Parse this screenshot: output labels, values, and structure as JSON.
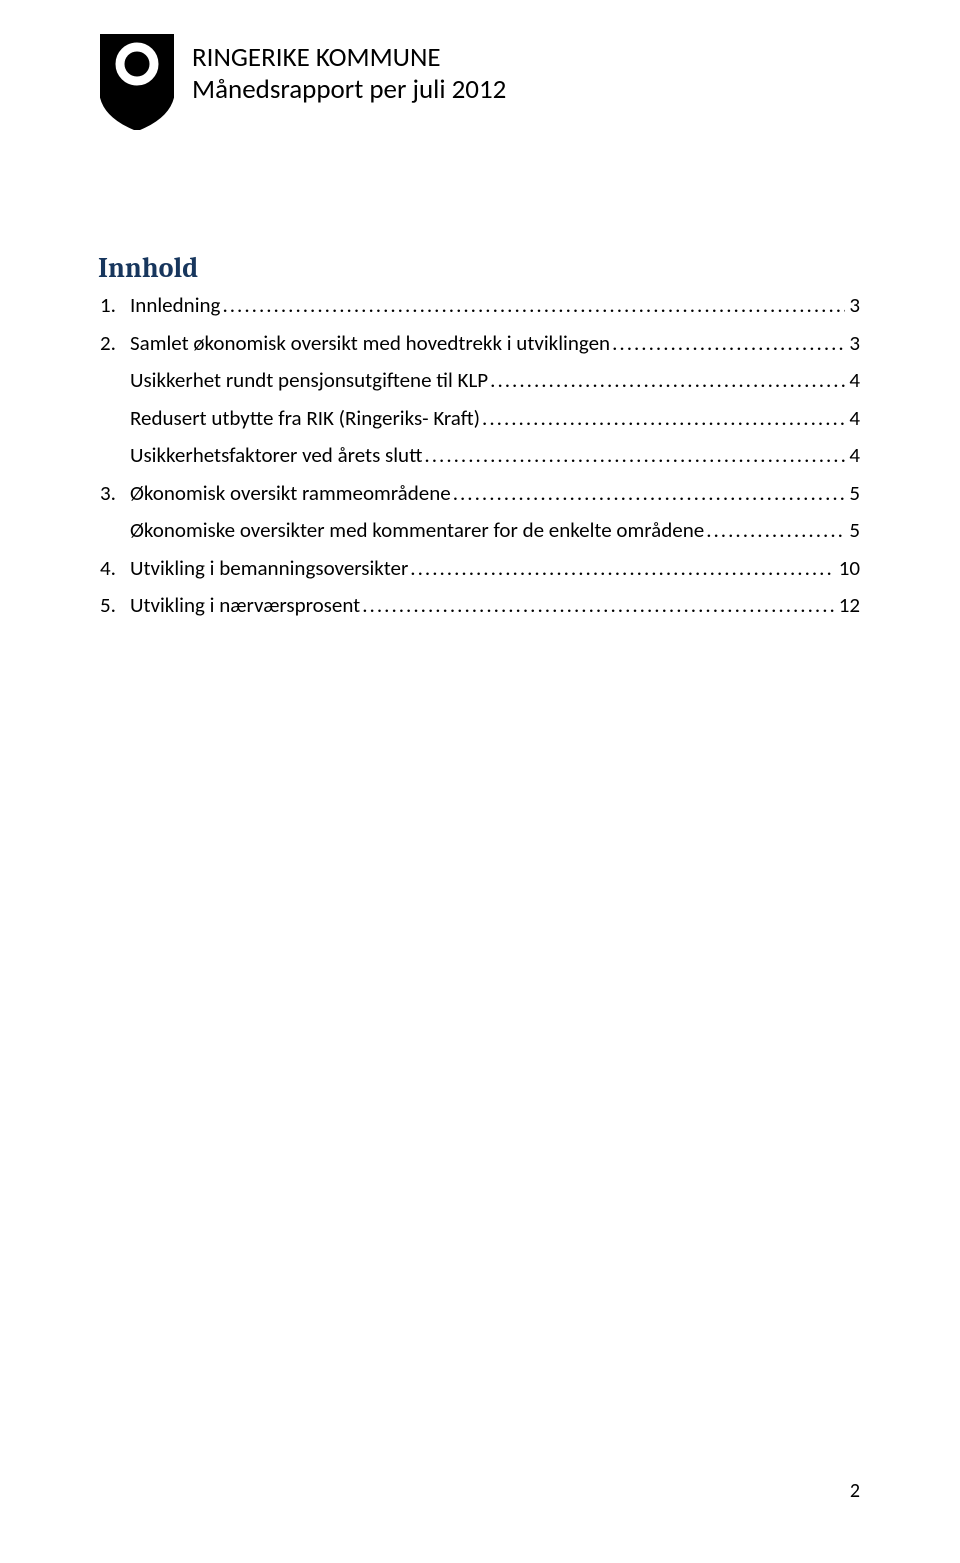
{
  "colors": {
    "heading_color": "#17365d",
    "text_color": "#000000",
    "background": "#ffffff",
    "shield_stroke": "#000000",
    "shield_fill_opaque": "#000000"
  },
  "typography": {
    "body_font": "Calibri",
    "heading_font": "Cambria",
    "header_fontsize": 27,
    "toc_heading_fontsize": 28,
    "toc_entry_fontsize": 21
  },
  "header": {
    "org_name": "RINGERIKE KOMMUNE",
    "report_title": "Månedsrapport per juli 2012"
  },
  "toc": {
    "heading": "Innhold",
    "entries": [
      {
        "num": "1.",
        "label": "Innledning",
        "page": "3",
        "indent": false,
        "numspacer": true
      },
      {
        "num": "2.",
        "label": "Samlet økonomisk oversikt med hovedtrekk i utviklingen",
        "page": "3",
        "indent": false,
        "numspacer": true
      },
      {
        "num": "",
        "label": "Usikkerhet rundt pensjonsutgiftene til KLP",
        "page": "4",
        "indent": true,
        "numspacer": false
      },
      {
        "num": "",
        "label": "Redusert utbytte fra RIK (Ringeriks- Kraft)",
        "page": "4",
        "indent": true,
        "numspacer": false
      },
      {
        "num": "",
        "label": "Usikkerhetsfaktorer ved årets slutt",
        "page": "4",
        "indent": true,
        "numspacer": false
      },
      {
        "num": "3.",
        "label": "Økonomisk oversikt rammeområdene",
        "page": "5",
        "indent": false,
        "numspacer": true
      },
      {
        "num": "",
        "label": "Økonomiske oversikter med kommentarer for de enkelte områdene",
        "page": "5",
        "indent": true,
        "numspacer": false
      },
      {
        "num": "4.",
        "label": "Utvikling i bemanningsoversikter",
        "page": "10",
        "indent": false,
        "numspacer": true
      },
      {
        "num": "5.",
        "label": "Utvikling i nærværsprosent",
        "page": "12",
        "indent": false,
        "numspacer": true
      }
    ]
  },
  "footer": {
    "page_number": "2"
  }
}
